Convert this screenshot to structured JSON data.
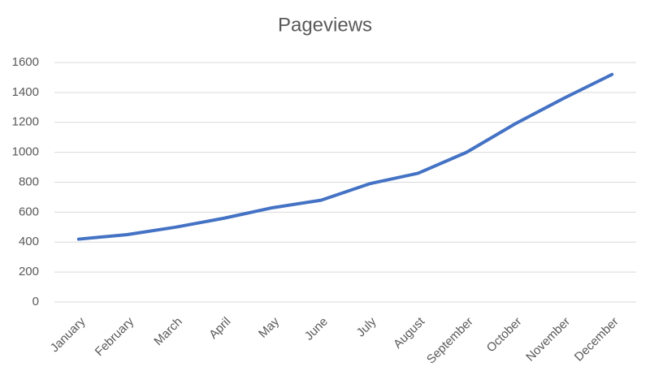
{
  "chart_data": {
    "type": "line",
    "title": "Pageviews",
    "categories": [
      "January",
      "February",
      "March",
      "April",
      "May",
      "June",
      "July",
      "August",
      "September",
      "October",
      "November",
      "December"
    ],
    "values": [
      420,
      450,
      500,
      560,
      630,
      680,
      790,
      860,
      1000,
      1190,
      1360,
      1520
    ],
    "color": "#4472c4",
    "ylim": [
      0,
      1600
    ],
    "yticks": [
      0,
      200,
      400,
      600,
      800,
      1000,
      1200,
      1400,
      1600
    ],
    "grid": true
  }
}
